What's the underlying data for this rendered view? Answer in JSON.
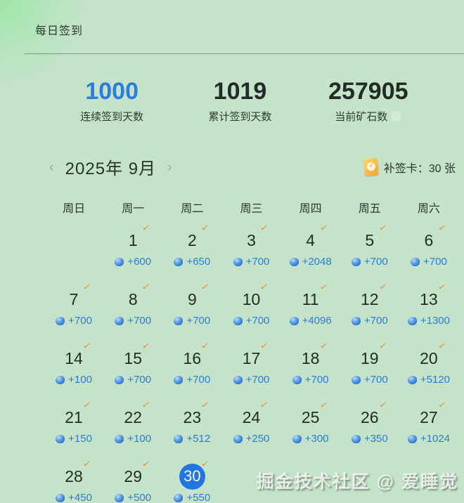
{
  "page": {
    "title": "每日签到"
  },
  "stats": [
    {
      "value": "1000",
      "label": "连续签到天数",
      "highlight": true
    },
    {
      "value": "1019",
      "label": "累计签到天数",
      "highlight": false
    },
    {
      "value": "257905",
      "label": "当前矿石数",
      "highlight": false
    }
  ],
  "calendar": {
    "month_label": "2025年 9月",
    "prev_arrow": "‹",
    "next_arrow": "›",
    "makeup_card": {
      "label": "补签卡：",
      "count": "30",
      "unit": "张"
    },
    "weekdays": [
      "周日",
      "周一",
      "周二",
      "周三",
      "周四",
      "周五",
      "周六"
    ],
    "weeks": [
      [
        null,
        {
          "day": "1",
          "reward": "+600",
          "checked": true
        },
        {
          "day": "2",
          "reward": "+650",
          "checked": true
        },
        {
          "day": "3",
          "reward": "+700",
          "checked": true
        },
        {
          "day": "4",
          "reward": "+2048",
          "checked": true
        },
        {
          "day": "5",
          "reward": "+700",
          "checked": true
        },
        {
          "day": "6",
          "reward": "+700",
          "checked": true
        }
      ],
      [
        {
          "day": "7",
          "reward": "+700",
          "checked": true
        },
        {
          "day": "8",
          "reward": "+700",
          "checked": true
        },
        {
          "day": "9",
          "reward": "+700",
          "checked": true
        },
        {
          "day": "10",
          "reward": "+700",
          "checked": true
        },
        {
          "day": "11",
          "reward": "+4096",
          "checked": true
        },
        {
          "day": "12",
          "reward": "+700",
          "checked": true
        },
        {
          "day": "13",
          "reward": "+1300",
          "checked": true
        }
      ],
      [
        {
          "day": "14",
          "reward": "+100",
          "checked": true
        },
        {
          "day": "15",
          "reward": "+700",
          "checked": true
        },
        {
          "day": "16",
          "reward": "+700",
          "checked": true
        },
        {
          "day": "17",
          "reward": "+700",
          "checked": true
        },
        {
          "day": "18",
          "reward": "+700",
          "checked": true
        },
        {
          "day": "19",
          "reward": "+700",
          "checked": true
        },
        {
          "day": "20",
          "reward": "+5120",
          "checked": true
        }
      ],
      [
        {
          "day": "21",
          "reward": "+150",
          "checked": true
        },
        {
          "day": "22",
          "reward": "+100",
          "checked": true
        },
        {
          "day": "23",
          "reward": "+512",
          "checked": true
        },
        {
          "day": "24",
          "reward": "+250",
          "checked": true
        },
        {
          "day": "25",
          "reward": "+300",
          "checked": true
        },
        {
          "day": "26",
          "reward": "+350",
          "checked": true
        },
        {
          "day": "27",
          "reward": "+1024",
          "checked": true
        }
      ],
      [
        {
          "day": "28",
          "reward": "+450",
          "checked": true
        },
        {
          "day": "29",
          "reward": "+500",
          "checked": true
        },
        {
          "day": "30",
          "reward": "+550",
          "checked": true,
          "today": true
        },
        null,
        null,
        null,
        null
      ]
    ]
  },
  "watermark": "掘金技术社区 @ 爱睡觉",
  "colors": {
    "background": "#c4e3c9",
    "accent_blue": "#2a7de2",
    "today_circle": "#2276e3",
    "check_orange": "#ec9140",
    "reward_blue": "#2b7cd8",
    "card_yellow": "#f3ac3e"
  }
}
